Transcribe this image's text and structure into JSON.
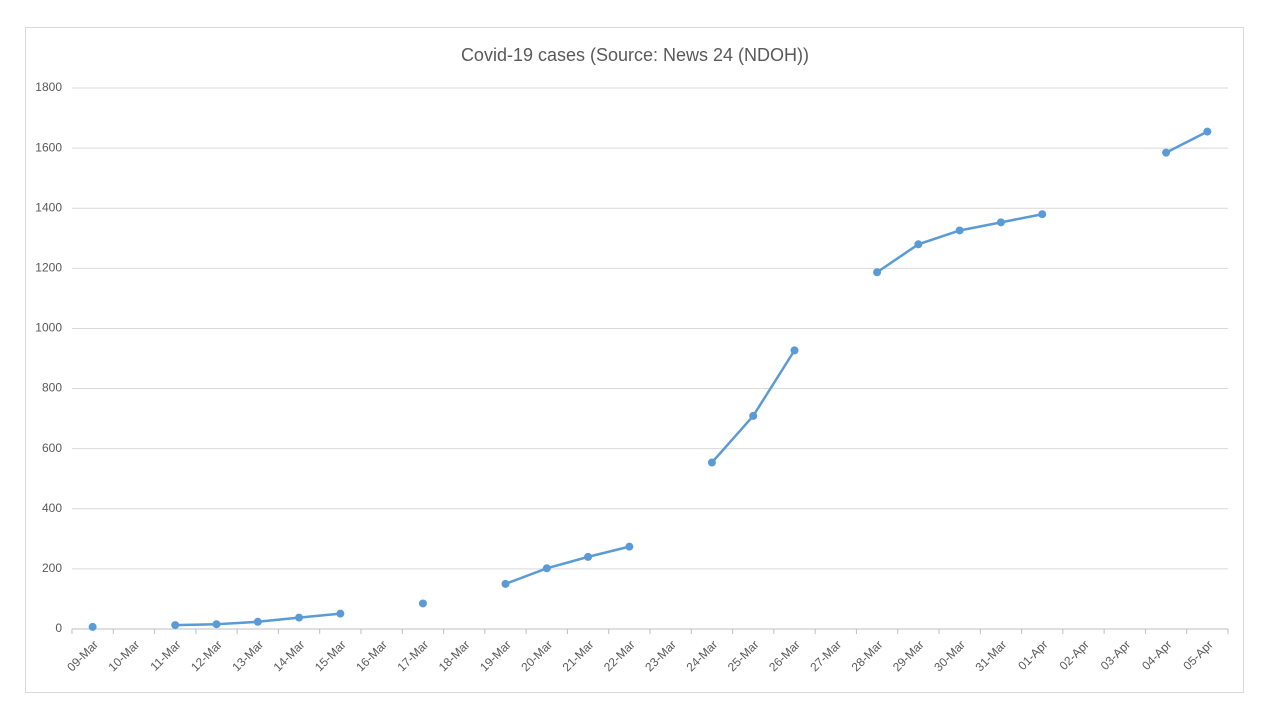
{
  "chart_data": {
    "type": "line",
    "title": "Covid-19 cases (Source: News 24 (NDOH))",
    "categories": [
      "09-Mar",
      "10-Mar",
      "11-Mar",
      "12-Mar",
      "13-Mar",
      "14-Mar",
      "15-Mar",
      "16-Mar",
      "17-Mar",
      "18-Mar",
      "19-Mar",
      "20-Mar",
      "21-Mar",
      "22-Mar",
      "23-Mar",
      "24-Mar",
      "25-Mar",
      "26-Mar",
      "27-Mar",
      "28-Mar",
      "29-Mar",
      "30-Mar",
      "31-Mar",
      "01-Apr",
      "02-Apr",
      "03-Apr",
      "04-Apr",
      "05-Apr"
    ],
    "values": [
      7,
      null,
      13,
      16,
      24,
      38,
      51,
      null,
      85,
      null,
      150,
      202,
      240,
      274,
      null,
      554,
      709,
      927,
      null,
      1187,
      1280,
      1326,
      1353,
      1380,
      null,
      null,
      1585,
      1655
    ],
    "color": "#5b9bd5",
    "ylim": [
      0,
      1800
    ],
    "yticks": [
      0,
      200,
      400,
      600,
      800,
      1000,
      1200,
      1400,
      1600,
      1800
    ],
    "grid": true
  }
}
